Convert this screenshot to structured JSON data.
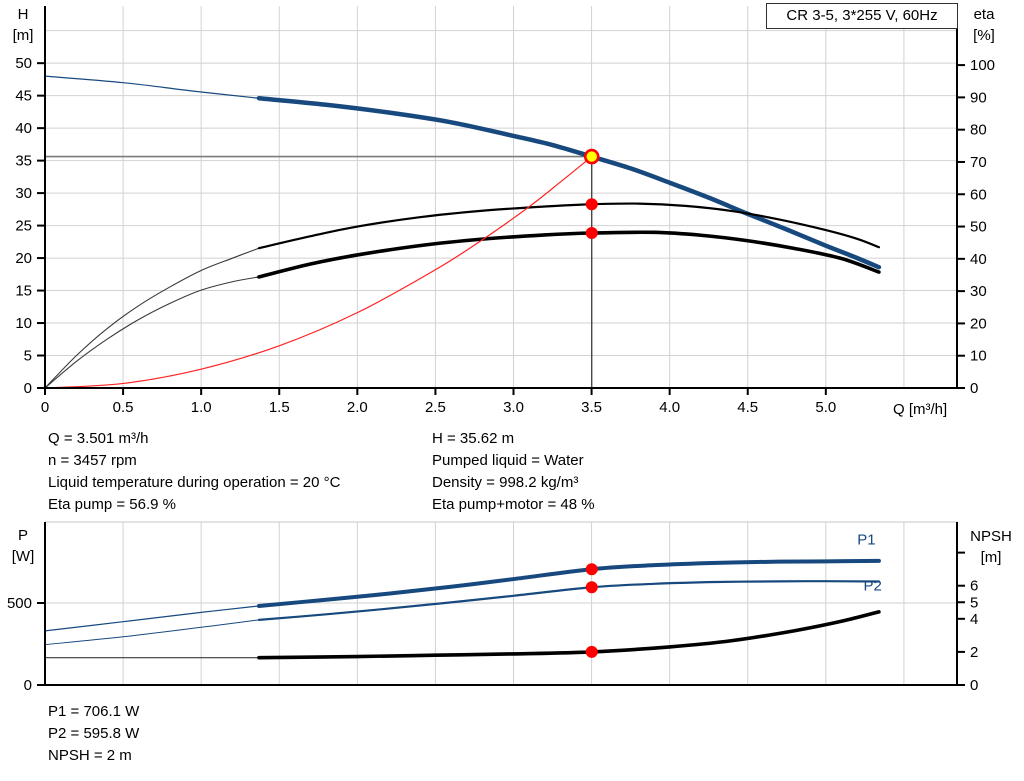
{
  "window": {
    "title_box": "CR 3-5, 3*255 V, 60Hz"
  },
  "colors": {
    "curve_blue": "#17497E",
    "curve_black": "#000000",
    "thin_gray": "#3a3a3a",
    "system_red": "#FF2222",
    "dot_red": "#FF0000",
    "duty_yellow": "#FFFF00",
    "grid": "#d2d2d2",
    "axis": "#000000",
    "crosshair_h": "#7a7a7a",
    "crosshair_v": "#3c3c3c"
  },
  "top_chart_labels": {
    "y1_line1": "H",
    "y1_line2": "[m]",
    "y2_line1": "eta",
    "y2_line2": "[%]",
    "x_label": "Q [m³/h]"
  },
  "bottom_chart_labels": {
    "y1_line1": "P",
    "y1_line2": "[W]",
    "y2_line1": "NPSH",
    "y2_line2": "[m]"
  },
  "info_top_left": [
    "Q = 3.501 m³/h",
    "n = 3457 rpm",
    "Liquid temperature during operation = 20 °C",
    "Eta pump = 56.9 %"
  ],
  "info_top_right": [
    "H = 35.62 m",
    "Pumped liquid = Water",
    "Density = 998.2 kg/m³",
    "Eta pump+motor = 48 %"
  ],
  "info_bottom": [
    "P1 = 706.1 W",
    "P2 = 595.8 W",
    "NPSH = 2 m"
  ],
  "chart_data": [
    {
      "type": "line",
      "title": "CR 3-5, 3*255 V, 60Hz — QH and efficiency curves",
      "xlabel": "Q [m³/h]",
      "ylabel": "H [m]",
      "y2label": "eta [%]",
      "xlim": [
        0,
        5.84
      ],
      "ylim": [
        0,
        58.8
      ],
      "y2lim": [
        0,
        118.3
      ],
      "grid": "on",
      "legend_position": "none",
      "x_ticks": [
        {
          "v": 0,
          "label": "0"
        },
        {
          "v": 0.5,
          "label": "0.5"
        },
        {
          "v": 1,
          "label": "1.0"
        },
        {
          "v": 1.5,
          "label": "1.5"
        },
        {
          "v": 2,
          "label": "2.0"
        },
        {
          "v": 2.5,
          "label": "2.5"
        },
        {
          "v": 3,
          "label": "3.0"
        },
        {
          "v": 3.5,
          "label": "3.5"
        },
        {
          "v": 4,
          "label": "4.0"
        },
        {
          "v": 4.5,
          "label": "4.5"
        },
        {
          "v": 5,
          "label": "5.0"
        }
      ],
      "y1_ticks": [
        {
          "v": 0,
          "label": "0"
        },
        {
          "v": 5,
          "label": "5"
        },
        {
          "v": 10,
          "label": "10"
        },
        {
          "v": 15,
          "label": "15"
        },
        {
          "v": 20,
          "label": "20"
        },
        {
          "v": 25,
          "label": "25"
        },
        {
          "v": 30,
          "label": "30"
        },
        {
          "v": 35,
          "label": "35"
        },
        {
          "v": 40,
          "label": "40"
        },
        {
          "v": 45,
          "label": "45"
        },
        {
          "v": 50,
          "label": "50"
        }
      ],
      "y2_ticks": [
        {
          "v": 0,
          "label": "0"
        },
        {
          "v": 10,
          "label": "10"
        },
        {
          "v": 20,
          "label": "20"
        },
        {
          "v": 30,
          "label": "30"
        },
        {
          "v": 40,
          "label": "40"
        },
        {
          "v": 50,
          "label": "50"
        },
        {
          "v": 60,
          "label": "60"
        },
        {
          "v": 70,
          "label": "70"
        },
        {
          "v": 80,
          "label": "80"
        },
        {
          "v": 90,
          "label": "90"
        },
        {
          "v": 100,
          "label": "100"
        }
      ],
      "x_grid": [
        0.5,
        1,
        1.5,
        2,
        2.5,
        3,
        3.5,
        4,
        4.5,
        5,
        5.5
      ],
      "y_grid": [
        5,
        10,
        15,
        20,
        25,
        30,
        35,
        40,
        45,
        50,
        55
      ],
      "series": [
        {
          "name": "h-curve-extension",
          "axis": "y1",
          "color": "blue",
          "width": 1.2,
          "points": [
            [
              0,
              48.0
            ],
            [
              0.5,
              47.0
            ],
            [
              0.95,
              45.7
            ],
            [
              1.37,
              44.6
            ]
          ]
        },
        {
          "name": "h-curve",
          "axis": "y1",
          "color": "blue",
          "width": 4.5,
          "points": [
            [
              1.37,
              44.6
            ],
            [
              1.8,
              43.6
            ],
            [
              2.2,
              42.4
            ],
            [
              2.6,
              40.9
            ],
            [
              3.0,
              38.8
            ],
            [
              3.25,
              37.4
            ],
            [
              3.501,
              35.62
            ],
            [
              3.75,
              33.8
            ],
            [
              4.0,
              31.6
            ],
            [
              4.25,
              29.3
            ],
            [
              4.5,
              26.8
            ],
            [
              4.75,
              24.4
            ],
            [
              5.0,
              21.9
            ],
            [
              5.17,
              20.3
            ],
            [
              5.34,
              18.6
            ]
          ]
        },
        {
          "name": "eta-pump-extension",
          "axis": "y2",
          "color": "thin",
          "width": 1.1,
          "points": [
            [
              0,
              0
            ],
            [
              0.2,
              10
            ],
            [
              0.4,
              18.5
            ],
            [
              0.6,
              25.5
            ],
            [
              0.8,
              31.3
            ],
            [
              1.0,
              36.4
            ],
            [
              1.2,
              40.2
            ],
            [
              1.37,
              43.3
            ]
          ]
        },
        {
          "name": "eta-pump-curve",
          "axis": "y2",
          "color": "black",
          "width": 2.2,
          "points": [
            [
              1.37,
              43.3
            ],
            [
              1.7,
              47.0
            ],
            [
              2.0,
              50.0
            ],
            [
              2.4,
              52.9
            ],
            [
              2.8,
              54.9
            ],
            [
              3.2,
              56.2
            ],
            [
              3.5,
              56.9
            ],
            [
              3.8,
              57.1
            ],
            [
              4.1,
              56.4
            ],
            [
              4.4,
              54.8
            ],
            [
              4.7,
              52.2
            ],
            [
              5.0,
              48.9
            ],
            [
              5.2,
              46.2
            ],
            [
              5.34,
              43.6
            ]
          ]
        },
        {
          "name": "eta-pump-motor-extension",
          "axis": "y2",
          "color": "thin",
          "width": 1.1,
          "points": [
            [
              0,
              0
            ],
            [
              0.2,
              8.2
            ],
            [
              0.4,
              15.2
            ],
            [
              0.6,
              21.2
            ],
            [
              0.8,
              26.2
            ],
            [
              1.0,
              30.3
            ],
            [
              1.2,
              32.9
            ],
            [
              1.37,
              34.4
            ]
          ]
        },
        {
          "name": "eta-pump-motor-curve",
          "axis": "y2",
          "color": "black",
          "width": 3.6,
          "points": [
            [
              1.37,
              34.4
            ],
            [
              1.7,
              38.4
            ],
            [
              2.0,
              41.2
            ],
            [
              2.4,
              44.1
            ],
            [
              2.8,
              46.1
            ],
            [
              3.2,
              47.4
            ],
            [
              3.5,
              48.0
            ],
            [
              3.9,
              48.2
            ],
            [
              4.2,
              47.3
            ],
            [
              4.5,
              45.6
            ],
            [
              4.8,
              43.2
            ],
            [
              5.1,
              40.1
            ],
            [
              5.34,
              35.9
            ]
          ]
        },
        {
          "name": "system-curve",
          "axis": "y1",
          "color": "red",
          "width": 1.2,
          "points": [
            [
              0,
              0
            ],
            [
              0.5,
              0.7
            ],
            [
              1.0,
              2.9
            ],
            [
              1.5,
              6.5
            ],
            [
              2.0,
              11.6
            ],
            [
              2.5,
              18.2
            ],
            [
              2.8,
              22.8
            ],
            [
              3.1,
              27.9
            ],
            [
              3.3,
              31.7
            ],
            [
              3.501,
              35.62
            ]
          ]
        }
      ],
      "crosshair": {
        "h": {
          "q1": 0,
          "q2": 3.501,
          "v": 35.62
        },
        "v": {
          "q": 3.501,
          "v1": 35.62,
          "v2": 0
        }
      },
      "points": [
        {
          "name": "eta-pump-point",
          "axis": "y2",
          "q": 3.501,
          "v": 56.9,
          "style": "red"
        },
        {
          "name": "eta-pump-motor-point",
          "axis": "y2",
          "q": 3.501,
          "v": 48,
          "style": "red"
        },
        {
          "name": "duty-point",
          "axis": "y1",
          "q": 3.501,
          "v": 35.62,
          "style": "duty"
        }
      ],
      "labels": []
    },
    {
      "type": "line",
      "title": "Power and NPSH curves",
      "xlabel": "",
      "ylabel": "P [W]",
      "y2label": "NPSH [m]",
      "xlim": [
        0,
        5.84
      ],
      "ylim": [
        0,
        994
      ],
      "y2lim": [
        0,
        9.85
      ],
      "grid": "on",
      "legend_position": "none",
      "x_ticks": [],
      "y1_ticks": [
        {
          "v": 0,
          "label": "0"
        },
        {
          "v": 500,
          "label": "500"
        }
      ],
      "y2_ticks": [
        {
          "v": 0,
          "label": "0"
        },
        {
          "v": 2,
          "label": "2"
        },
        {
          "v": 4,
          "label": "4"
        },
        {
          "v": 5,
          "label": "5"
        },
        {
          "v": 6,
          "label": "6"
        },
        {
          "v": 8,
          "label": ""
        }
      ],
      "x_grid": [
        0.5,
        1,
        1.5,
        2,
        2.5,
        3,
        3.5,
        4,
        4.5,
        5,
        5.5
      ],
      "y_grid": [
        500
      ],
      "top_border": true,
      "series": [
        {
          "name": "p1-extension",
          "axis": "y1",
          "color": "blue",
          "width": 1.2,
          "points": [
            [
              0,
              330
            ],
            [
              0.5,
              386
            ],
            [
              1.0,
              443
            ],
            [
              1.37,
              482
            ]
          ]
        },
        {
          "name": "p1-curve",
          "axis": "y1",
          "color": "blue",
          "width": 4,
          "points": [
            [
              1.37,
              482
            ],
            [
              1.8,
              520
            ],
            [
              2.2,
              557
            ],
            [
              2.6,
              599
            ],
            [
              3.0,
              646
            ],
            [
              3.5,
              706
            ],
            [
              3.9,
              731
            ],
            [
              4.3,
              745
            ],
            [
              4.7,
              752
            ],
            [
              5.0,
              754
            ],
            [
              5.34,
              757
            ]
          ]
        },
        {
          "name": "p2-extension",
          "axis": "y1",
          "color": "blue",
          "width": 1,
          "points": [
            [
              0,
              246
            ],
            [
              0.5,
              294
            ],
            [
              1.0,
              352
            ],
            [
              1.37,
              397
            ]
          ]
        },
        {
          "name": "p2-curve",
          "axis": "y1",
          "color": "blue",
          "width": 2.2,
          "points": [
            [
              1.37,
              397
            ],
            [
              1.8,
              431
            ],
            [
              2.2,
              466
            ],
            [
              2.6,
              504
            ],
            [
              3.0,
              544
            ],
            [
              3.5,
              596
            ],
            [
              3.9,
              617
            ],
            [
              4.3,
              628
            ],
            [
              4.7,
              632
            ],
            [
              5.0,
              633
            ],
            [
              5.34,
              631
            ]
          ]
        },
        {
          "name": "npsh-extension",
          "axis": "y2",
          "color": "thin",
          "width": 1.2,
          "points": [
            [
              0,
              1.65
            ],
            [
              1.37,
              1.65
            ]
          ]
        },
        {
          "name": "npsh-curve",
          "axis": "y2",
          "color": "black",
          "width": 3.6,
          "points": [
            [
              1.37,
              1.65
            ],
            [
              2.0,
              1.72
            ],
            [
              2.5,
              1.8
            ],
            [
              3.0,
              1.88
            ],
            [
              3.501,
              2.0
            ],
            [
              4.0,
              2.3
            ],
            [
              4.4,
              2.68
            ],
            [
              4.8,
              3.28
            ],
            [
              5.1,
              3.85
            ],
            [
              5.34,
              4.42
            ]
          ]
        }
      ],
      "points": [
        {
          "name": "p1-point",
          "axis": "y1",
          "q": 3.501,
          "v": 706.1,
          "style": "red"
        },
        {
          "name": "p2-point",
          "axis": "y1",
          "q": 3.501,
          "v": 595.8,
          "style": "red"
        },
        {
          "name": "npsh-point",
          "axis": "y2",
          "q": 3.501,
          "v": 2,
          "style": "red"
        }
      ],
      "labels": [
        {
          "text": "P1",
          "q": 5.26,
          "axis": "y1",
          "v": 856
        },
        {
          "text": "P2",
          "q": 5.3,
          "axis": "y1",
          "v": 577
        }
      ]
    }
  ]
}
